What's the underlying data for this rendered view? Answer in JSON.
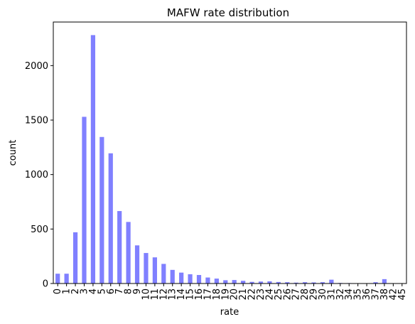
{
  "chart_data": {
    "type": "bar",
    "title": "MAFW rate distribution",
    "xlabel": "rate",
    "ylabel": "count",
    "ylim": [
      0,
      2400
    ],
    "yticks": [
      0,
      500,
      1000,
      1500,
      2000
    ],
    "grid": false,
    "bar_color": "#8080ff",
    "categories": [
      "0",
      "1",
      "2",
      "3",
      "4",
      "5",
      "6",
      "7",
      "8",
      "9",
      "10",
      "11",
      "12",
      "13",
      "14",
      "15",
      "16",
      "17",
      "18",
      "19",
      "20",
      "21",
      "22",
      "23",
      "24",
      "25",
      "26",
      "27",
      "28",
      "29",
      "30",
      "31",
      "32",
      "34",
      "35",
      "36",
      "37",
      "38",
      "42",
      "45"
    ],
    "values": [
      90,
      90,
      470,
      1530,
      2280,
      1345,
      1195,
      665,
      565,
      350,
      280,
      240,
      180,
      125,
      100,
      85,
      78,
      55,
      45,
      30,
      32,
      25,
      15,
      18,
      20,
      14,
      12,
      8,
      12,
      10,
      12,
      35,
      5,
      4,
      2,
      2,
      12,
      40,
      2,
      1
    ]
  }
}
